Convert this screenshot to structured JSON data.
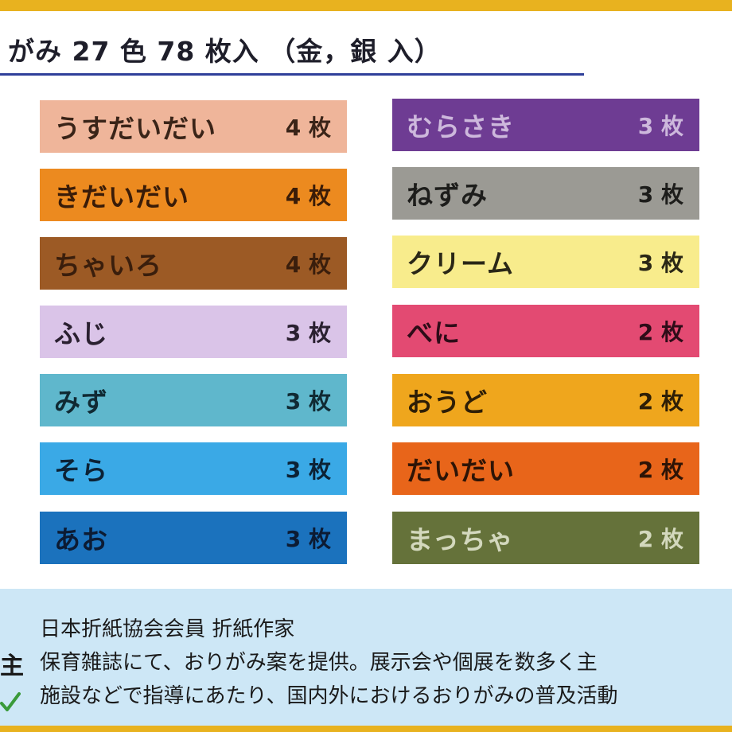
{
  "header": {
    "title": "がみ 27 色 78 枚入 （金，銀 入）"
  },
  "colors": {
    "left": [
      {
        "name": "うすだいだい",
        "count": "4 枚",
        "bg": "#efb59a",
        "fg": "#3a2418"
      },
      {
        "name": "きだいだい",
        "count": "4 枚",
        "bg": "#ec8a1f",
        "fg": "#3a1c08"
      },
      {
        "name": "ちゃいろ",
        "count": "4 枚",
        "bg": "#9c5a25",
        "fg": "#3a1e0c"
      },
      {
        "name": "ふじ",
        "count": "3 枚",
        "bg": "#dac4e8",
        "fg": "#2a2030"
      },
      {
        "name": "みず",
        "count": "3 枚",
        "bg": "#5fb7cc",
        "fg": "#102a33"
      },
      {
        "name": "そら",
        "count": "3 枚",
        "bg": "#3aa9e6",
        "fg": "#0c2235"
      },
      {
        "name": "あお",
        "count": "3 枚",
        "bg": "#1b72bd",
        "fg": "#0c1b33"
      }
    ],
    "right": [
      {
        "name": "むらさき",
        "count": "3 枚",
        "bg": "#6e3c93",
        "fg": "#cdb8dc"
      },
      {
        "name": "ねずみ",
        "count": "3 枚",
        "bg": "#9b9a94",
        "fg": "#1d1d1b"
      },
      {
        "name": "クリーム",
        "count": "3 枚",
        "bg": "#f8ec8c",
        "fg": "#2a2716"
      },
      {
        "name": "べに",
        "count": "2 枚",
        "bg": "#e34a72",
        "fg": "#2e0c18"
      },
      {
        "name": "おうど",
        "count": "2 枚",
        "bg": "#efa61d",
        "fg": "#2e1e06"
      },
      {
        "name": "だいだい",
        "count": "2 枚",
        "bg": "#e8651a",
        "fg": "#2e1406"
      },
      {
        "name": "まっちゃ",
        "count": "2 枚",
        "bg": "#65723a",
        "fg": "#d3d8bd"
      }
    ]
  },
  "info": {
    "line1": "日本折紙協会会員 折紙作家",
    "line2": "保育雑誌にて、おりがみ案を提供。展示会や個展を数多く主",
    "line3": "施設などで指導にあたり、国内外におけるおりがみの普及活動",
    "side_char": "主",
    "check_icon": "check-icon"
  },
  "theme": {
    "border": "#e8b21f",
    "rule": "#2f3f9a",
    "info_bg": "#cde7f6"
  }
}
